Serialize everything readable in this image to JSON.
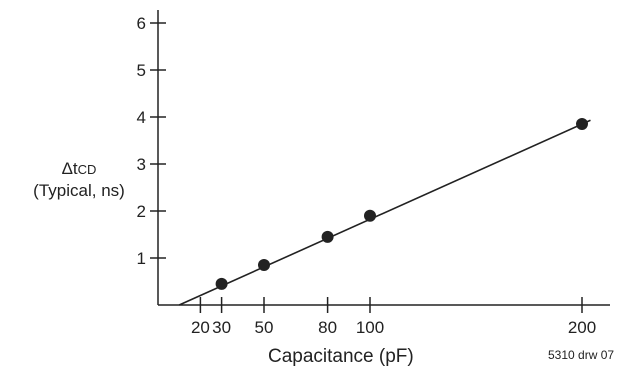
{
  "chart_data": {
    "type": "line",
    "title": "",
    "xlabel": "Capacitance (pF)",
    "ylabel": {
      "delta": "Δ",
      "t": "t",
      "subscript": "CD",
      "line2": "(Typical, ns)"
    },
    "note": "5310 drw 07",
    "xlim": [
      0,
      200
    ],
    "ylim": [
      0,
      6
    ],
    "x_ticks": [
      20,
      30,
      50,
      80,
      100,
      200
    ],
    "y_ticks": [
      1,
      2,
      3,
      4,
      5,
      6
    ],
    "series": [
      {
        "x": [
          30,
          50,
          80,
          100,
          200
        ],
        "y": [
          0.45,
          0.85,
          1.45,
          1.9,
          3.85
        ],
        "markers": true,
        "fit_line": {
          "x": [
            10,
            204
          ],
          "y": [
            0,
            3.93
          ]
        }
      }
    ],
    "grid": false,
    "legend": "none"
  }
}
